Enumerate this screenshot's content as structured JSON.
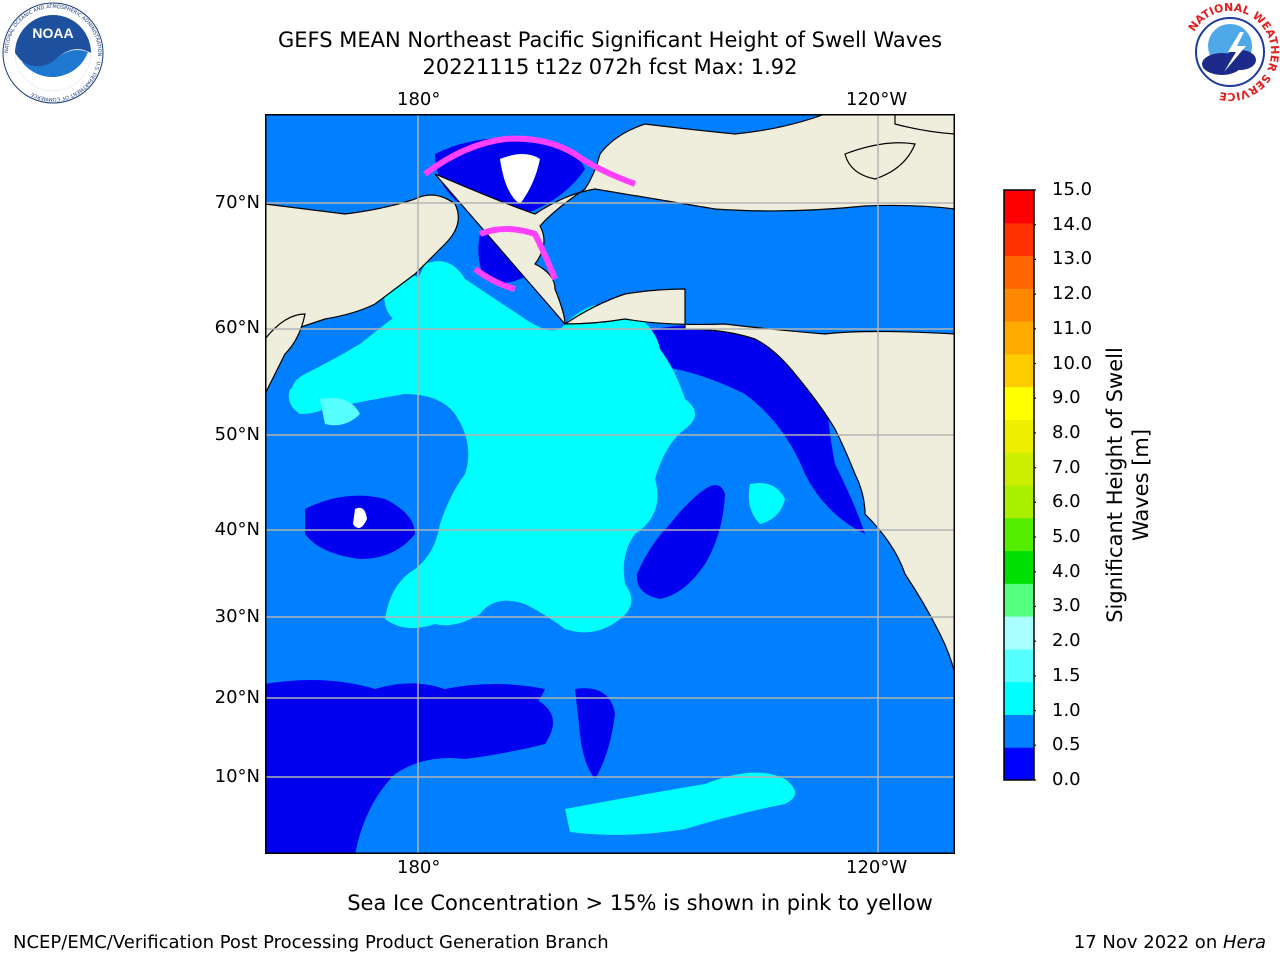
{
  "title": {
    "line1": "GEFS MEAN Northeast Pacific Significant Height of Swell Waves",
    "line2": "20221115 t12z 072h fcst   Max: 1.92"
  },
  "logos": {
    "noaa": {
      "text": "NOAA",
      "ring_text": "NATIONAL OCEANIC AND ATMOSPHERIC ADMINISTRATION · U.S. DEPARTMENT OF COMMERCE"
    },
    "nws": {
      "ring_text": "NATIONAL WEATHER SERVICE"
    }
  },
  "map": {
    "lon_labels": [
      "180°",
      "120°W"
    ],
    "lat_labels": [
      "70°N",
      "60°N",
      "50°N",
      "40°N",
      "30°N",
      "20°N",
      "10°N"
    ],
    "colors": {
      "land": "#efeedc",
      "ocean_low": "#0000ee",
      "ocean_mid": "#0080ff",
      "ocean_high": "#00ffff",
      "ocean_high2": "#58ffff",
      "ice_pink": "#ff40ff",
      "ice_yellow": "#ffcc66",
      "grid": "#b3b3b3"
    }
  },
  "colorbar": {
    "label_line1": "Significant Height of Swell",
    "label_line2": "Waves [m]",
    "ticks": [
      "15.0",
      "14.0",
      "13.0",
      "12.0",
      "11.0",
      "10.0",
      "9.0",
      "8.0",
      "7.0",
      "6.0",
      "5.0",
      "4.0",
      "3.0",
      "2.0",
      "1.5",
      "1.0",
      "0.5",
      "0.0"
    ],
    "colors_bottom_to_top": [
      "#0000ff",
      "#0080ff",
      "#00ffff",
      "#55ffff",
      "#aaffff",
      "#55ff80",
      "#00e000",
      "#55ee00",
      "#aaee00",
      "#ccee00",
      "#eeee00",
      "#ffff00",
      "#ffcc00",
      "#ffaa00",
      "#ff8800",
      "#ff6600",
      "#ff3300",
      "#ff0000"
    ]
  },
  "note": "Sea Ice Concentration > 15% is shown in pink to yellow",
  "footer": {
    "left": "NCEP/EMC/Verification Post Processing Product Generation Branch",
    "right_prefix": "17 Nov 2022 on ",
    "right_machine": "Hera"
  }
}
